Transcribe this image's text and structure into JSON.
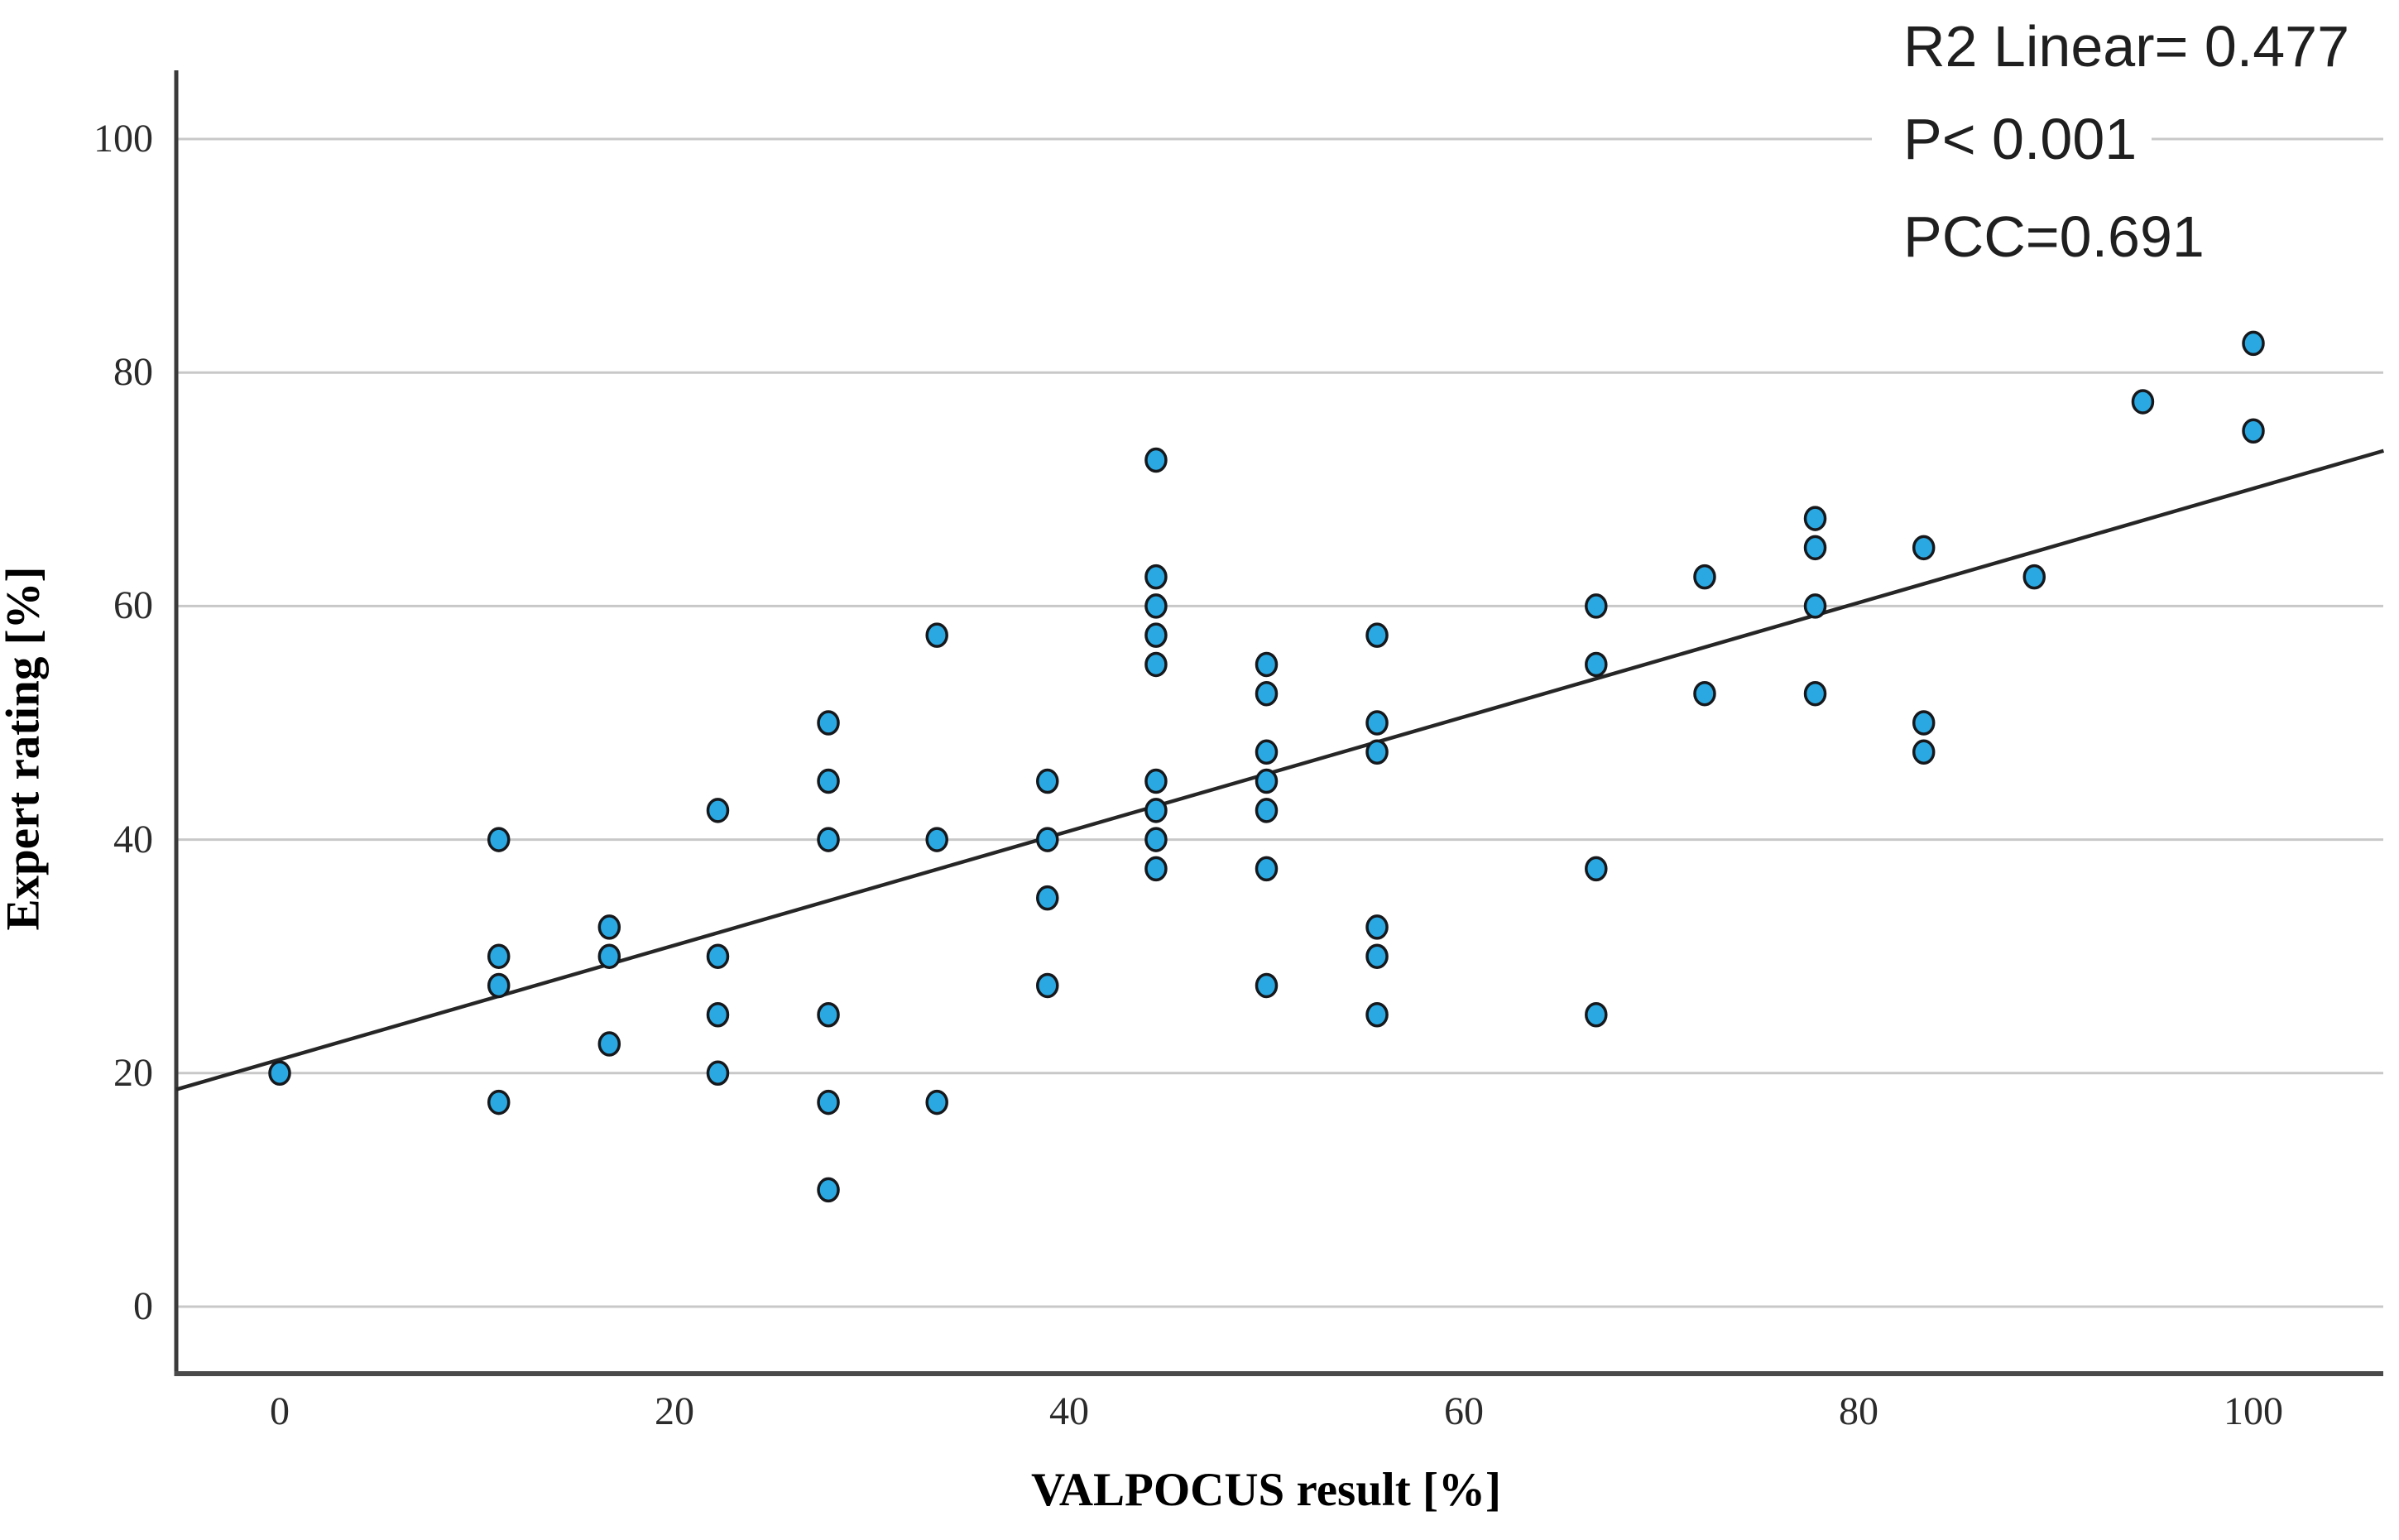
{
  "annotations": {
    "r2": "R2 Linear= 0.477",
    "p": "P< 0.001",
    "pcc": "PCC=0.691"
  },
  "chart_data": {
    "type": "scatter",
    "title": "",
    "xlabel": "VALPOCUS result [%]",
    "ylabel": "Expert rating [%]",
    "x_ticks": [
      0,
      20,
      40,
      60,
      80,
      100
    ],
    "y_ticks": [
      0,
      20,
      40,
      60,
      80,
      100
    ],
    "xlim": [
      -5.3,
      106.6
    ],
    "ylim": [
      -5.7,
      106
    ],
    "grid": "horizontal gridlines at y=0,20,40,60,80,100",
    "legend_position": "none",
    "annotations": [
      "R2 Linear= 0.477",
      "P< 0.001",
      "PCC=0.691"
    ],
    "points": [
      {
        "x": 0,
        "y": 20
      },
      {
        "x": 11.1,
        "y": 17.5
      },
      {
        "x": 11.1,
        "y": 27.5
      },
      {
        "x": 11.1,
        "y": 30
      },
      {
        "x": 11.1,
        "y": 40
      },
      {
        "x": 16.7,
        "y": 22.5
      },
      {
        "x": 16.7,
        "y": 30
      },
      {
        "x": 16.7,
        "y": 32.5
      },
      {
        "x": 22.2,
        "y": 20
      },
      {
        "x": 22.2,
        "y": 25
      },
      {
        "x": 22.2,
        "y": 30
      },
      {
        "x": 22.2,
        "y": 42.5
      },
      {
        "x": 27.8,
        "y": 10
      },
      {
        "x": 27.8,
        "y": 17.5
      },
      {
        "x": 27.8,
        "y": 25
      },
      {
        "x": 27.8,
        "y": 40
      },
      {
        "x": 27.8,
        "y": 45
      },
      {
        "x": 27.8,
        "y": 50
      },
      {
        "x": 33.3,
        "y": 17.5
      },
      {
        "x": 33.3,
        "y": 40
      },
      {
        "x": 33.3,
        "y": 57.5
      },
      {
        "x": 38.9,
        "y": 27.5
      },
      {
        "x": 38.9,
        "y": 35
      },
      {
        "x": 38.9,
        "y": 40
      },
      {
        "x": 38.9,
        "y": 45
      },
      {
        "x": 44.4,
        "y": 37.5
      },
      {
        "x": 44.4,
        "y": 40
      },
      {
        "x": 44.4,
        "y": 42.5
      },
      {
        "x": 44.4,
        "y": 45
      },
      {
        "x": 44.4,
        "y": 55
      },
      {
        "x": 44.4,
        "y": 57.5
      },
      {
        "x": 44.4,
        "y": 60
      },
      {
        "x": 44.4,
        "y": 62.5
      },
      {
        "x": 44.4,
        "y": 72.5
      },
      {
        "x": 50,
        "y": 27.5
      },
      {
        "x": 50,
        "y": 37.5
      },
      {
        "x": 50,
        "y": 42.5
      },
      {
        "x": 50,
        "y": 45
      },
      {
        "x": 50,
        "y": 47.5
      },
      {
        "x": 50,
        "y": 52.5
      },
      {
        "x": 50,
        "y": 55
      },
      {
        "x": 55.6,
        "y": 25
      },
      {
        "x": 55.6,
        "y": 30
      },
      {
        "x": 55.6,
        "y": 32.5
      },
      {
        "x": 55.6,
        "y": 47.5
      },
      {
        "x": 55.6,
        "y": 50
      },
      {
        "x": 55.6,
        "y": 57.5
      },
      {
        "x": 66.7,
        "y": 25
      },
      {
        "x": 66.7,
        "y": 37.5
      },
      {
        "x": 66.7,
        "y": 55
      },
      {
        "x": 66.7,
        "y": 60
      },
      {
        "x": 72.2,
        "y": 52.5
      },
      {
        "x": 72.2,
        "y": 62.5
      },
      {
        "x": 77.8,
        "y": 52.5
      },
      {
        "x": 77.8,
        "y": 60
      },
      {
        "x": 77.8,
        "y": 65
      },
      {
        "x": 77.8,
        "y": 67.5
      },
      {
        "x": 83.3,
        "y": 47.5
      },
      {
        "x": 83.3,
        "y": 50
      },
      {
        "x": 83.3,
        "y": 65
      },
      {
        "x": 88.9,
        "y": 62.5
      },
      {
        "x": 94.4,
        "y": 77.5
      },
      {
        "x": 100,
        "y": 75
      },
      {
        "x": 100,
        "y": 82.5
      }
    ],
    "trendline": {
      "x1": -5.24,
      "y1": 18.6,
      "x2": 106.6,
      "y2": 73.3
    },
    "colors": {
      "point_fill": "#29A8E2",
      "point_stroke": "#16181B",
      "grid": "#C8C8C8",
      "axis_left": "#3A3A3A",
      "axis_bottom": "#4A4A4A",
      "trend": "#262626"
    }
  }
}
